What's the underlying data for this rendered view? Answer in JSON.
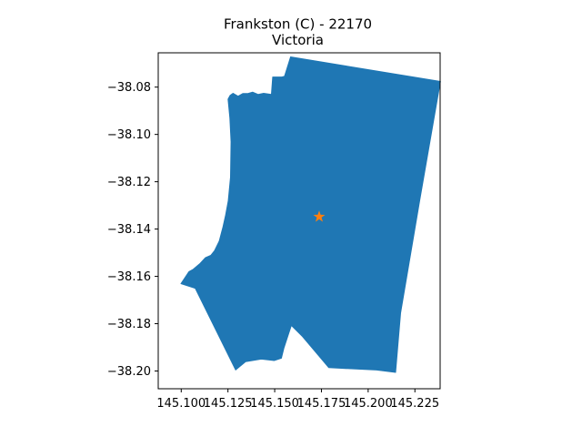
{
  "chart_data": {
    "type": "map",
    "title": "Frankston (C) - 22170",
    "subtitle": "Victoria",
    "xlim": [
      145.0877,
      145.2385
    ],
    "ylim": [
      -38.2075,
      -38.0655
    ],
    "x_ticks": [
      145.1,
      145.125,
      145.15,
      145.175,
      145.2,
      145.225
    ],
    "x_tick_labels": [
      "145.100",
      "145.125",
      "145.150",
      "145.175",
      "145.200",
      "145.225"
    ],
    "y_ticks": [
      -38.08,
      -38.1,
      -38.12,
      -38.14,
      -38.16,
      -38.18,
      -38.2
    ],
    "y_tick_labels": [
      "−38.08",
      "−38.10",
      "−38.12",
      "−38.14",
      "−38.16",
      "−38.18",
      "−38.20"
    ],
    "region_polygon": [
      [
        145.1585,
        -38.0672
      ],
      [
        145.2387,
        -38.0776
      ],
      [
        145.2277,
        -38.1275
      ],
      [
        145.2174,
        -38.1755
      ],
      [
        145.2147,
        -38.2006
      ],
      [
        145.2045,
        -38.1996
      ],
      [
        145.1789,
        -38.1986
      ],
      [
        145.1648,
        -38.1854
      ],
      [
        145.1589,
        -38.1808
      ],
      [
        145.155,
        -38.1903
      ],
      [
        145.1536,
        -38.1946
      ],
      [
        145.1497,
        -38.1956
      ],
      [
        145.1428,
        -38.195
      ],
      [
        145.1344,
        -38.1961
      ],
      [
        145.1291,
        -38.1996
      ],
      [
        145.1075,
        -38.1651
      ],
      [
        145.0998,
        -38.1631
      ],
      [
        145.1041,
        -38.158
      ],
      [
        145.1062,
        -38.1571
      ],
      [
        145.1101,
        -38.1545
      ],
      [
        145.1129,
        -38.1521
      ],
      [
        145.1158,
        -38.1511
      ],
      [
        145.1178,
        -38.1491
      ],
      [
        145.1203,
        -38.1451
      ],
      [
        145.1223,
        -38.1391
      ],
      [
        145.1237,
        -38.1341
      ],
      [
        145.1251,
        -38.1281
      ],
      [
        145.1263,
        -38.1181
      ],
      [
        145.1266,
        -38.1031
      ],
      [
        145.126,
        -38.0931
      ],
      [
        145.125,
        -38.0851
      ],
      [
        145.1261,
        -38.0835
      ],
      [
        145.1277,
        -38.0826
      ],
      [
        145.1304,
        -38.0838
      ],
      [
        145.1329,
        -38.0827
      ],
      [
        145.1354,
        -38.0827
      ],
      [
        145.1382,
        -38.0821
      ],
      [
        145.1412,
        -38.0831
      ],
      [
        145.1441,
        -38.0826
      ],
      [
        145.1482,
        -38.0831
      ],
      [
        145.1489,
        -38.0757
      ],
      [
        145.1538,
        -38.0757
      ],
      [
        145.1552,
        -38.0754
      ]
    ],
    "marker": {
      "x": 145.1738,
      "y": -38.1348,
      "symbol": "star"
    },
    "grid": false,
    "colors": {
      "region_fill": "#1f77b4",
      "marker": "#ff7f0e",
      "axes": "#000000",
      "background": "#ffffff"
    }
  }
}
